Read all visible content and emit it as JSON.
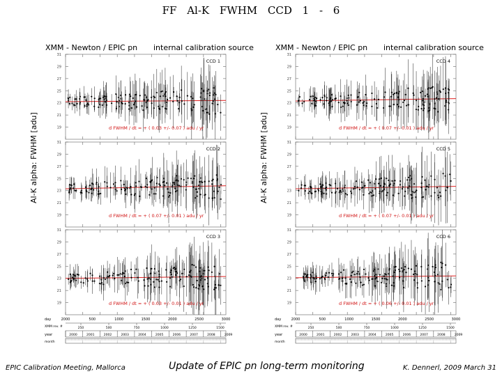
{
  "slide": {
    "title": "FF   Al-K   FWHM   CCD 1 - 6",
    "footer_left": "EPIC Calibration Meeting, Mallorca",
    "footer_center": "Update of EPIC pn long-term monitoring",
    "footer_right": "K. Dennerl, 2009 March 31"
  },
  "figures": [
    {
      "heading_left": "XMM - Newton  /  EPIC pn",
      "heading_right": "internal calibration source",
      "ylabel": "Al-K  alpha:  FWHM  [adu]",
      "panels": [
        {
          "label": "CCD 1",
          "fit": "d FWHM / dt = + ( 0.03 +/- 0.07 ) adu / yr",
          "base": 23.2,
          "end": 23.4
        },
        {
          "label": "CCD 2",
          "fit": "d FWHM / dt = + ( 0.07 +/- 0.01 ) adu / yr",
          "base": 23.3,
          "end": 23.8
        },
        {
          "label": "CCD 3",
          "fit": "d FWHM / dt = + ( 0.03 +/- 0.01 ) adu / yr",
          "base": 23.0,
          "end": 23.3
        }
      ]
    },
    {
      "heading_left": "XMM - Newton  /  EPIC pn",
      "heading_right": "internal calibration source",
      "ylabel": "Al-K  alpha:  FWHM  [adu]",
      "panels": [
        {
          "label": "CCD 4",
          "fit": "d FWHM / dt = + ( 0.07 +/- 0.01 ) adu / yr",
          "base": 23.3,
          "end": 23.7
        },
        {
          "label": "CCD 5",
          "fit": "d FWHM / dt = + ( 0.07 +/- 0.01 ) adu / yr",
          "base": 23.3,
          "end": 23.7
        },
        {
          "label": "CCD 6",
          "fit": "d FWHM / dt = + ( 0.06 +/- 0.01 ) adu / yr",
          "base": 23.1,
          "end": 23.4
        }
      ]
    }
  ],
  "axes": {
    "y_ticks": [
      "19",
      "21",
      "23",
      "25",
      "27",
      "29",
      "31"
    ],
    "ylim": [
      17,
      31
    ],
    "day_label": "day",
    "day_ticks": [
      "2000",
      "500",
      "1000",
      "1500",
      "2000",
      "2500",
      "3000"
    ],
    "rev_label": "XMM rev. #",
    "rev_ticks": [
      "250",
      "500",
      "750",
      "1000",
      "1250",
      "1500"
    ],
    "year_label": "year",
    "year_ticks": [
      "2000",
      "2001",
      "2002",
      "2003",
      "2004",
      "2005",
      "2006",
      "2007",
      "2008",
      "2009"
    ],
    "month_label": "month",
    "xlim": [
      2000.0,
      2009.3
    ]
  },
  "chart_data": {
    "type": "scatter",
    "title": "",
    "xlabel": "year",
    "ylabel": "Al-K  alpha:  FWHM  [adu]",
    "ylim": [
      17,
      31
    ],
    "series": [
      {
        "name": "CCD 1",
        "x": [
          2000.2,
          2000.8,
          2001.4,
          2002.0,
          2002.6,
          2003.2,
          2003.8,
          2004.4,
          2005.0,
          2005.6,
          2006.2,
          2006.8,
          2007.4,
          2008.0,
          2008.6
        ],
        "y": [
          23.0,
          23.3,
          22.9,
          23.4,
          23.1,
          23.5,
          22.8,
          23.3,
          23.2,
          23.6,
          22.7,
          23.4,
          23.9,
          22.6,
          23.5
        ]
      },
      {
        "name": "CCD 2",
        "x": [
          2000.2,
          2000.8,
          2001.4,
          2002.0,
          2002.6,
          2003.2,
          2003.8,
          2004.4,
          2005.0,
          2005.6,
          2006.2,
          2006.8,
          2007.4,
          2008.0,
          2008.6
        ],
        "y": [
          23.2,
          23.5,
          23.0,
          23.6,
          23.2,
          23.7,
          23.1,
          23.4,
          23.8,
          23.3,
          23.9,
          23.5,
          24.1,
          23.4,
          23.8
        ]
      },
      {
        "name": "CCD 3",
        "x": [
          2000.2,
          2000.8,
          2001.4,
          2002.0,
          2002.6,
          2003.2,
          2003.8,
          2004.4,
          2005.0,
          2005.6,
          2006.2,
          2006.8,
          2007.4,
          2008.0,
          2008.6
        ],
        "y": [
          22.9,
          23.2,
          22.8,
          23.3,
          23.0,
          23.4,
          22.7,
          23.1,
          23.3,
          23.0,
          23.5,
          22.9,
          23.6,
          23.1,
          23.4
        ]
      },
      {
        "name": "CCD 4",
        "x": [
          2000.2,
          2000.8,
          2001.4,
          2002.0,
          2002.6,
          2003.2,
          2003.8,
          2004.4,
          2005.0,
          2005.6,
          2006.2,
          2006.8,
          2007.4,
          2008.0,
          2008.6
        ],
        "y": [
          23.1,
          23.5,
          23.0,
          23.6,
          23.3,
          23.8,
          23.0,
          23.5,
          23.7,
          23.2,
          24.0,
          23.4,
          23.9,
          23.3,
          23.8
        ]
      },
      {
        "name": "CCD 5",
        "x": [
          2000.2,
          2000.8,
          2001.4,
          2002.0,
          2002.6,
          2003.2,
          2003.8,
          2004.4,
          2005.0,
          2005.6,
          2006.2,
          2006.8,
          2007.4,
          2008.0,
          2008.6
        ],
        "y": [
          23.2,
          23.4,
          23.1,
          23.7,
          23.2,
          23.6,
          23.1,
          23.5,
          23.8,
          23.3,
          23.9,
          23.6,
          24.0,
          23.4,
          23.7
        ]
      },
      {
        "name": "CCD 6",
        "x": [
          2000.2,
          2000.8,
          2001.4,
          2002.0,
          2002.6,
          2003.2,
          2003.8,
          2004.4,
          2005.0,
          2005.6,
          2006.2,
          2006.8,
          2007.4,
          2008.0,
          2008.6
        ],
        "y": [
          23.0,
          23.2,
          22.9,
          23.4,
          23.1,
          23.5,
          22.8,
          23.2,
          23.4,
          23.0,
          23.6,
          23.1,
          23.7,
          23.2,
          23.4
        ]
      }
    ]
  }
}
